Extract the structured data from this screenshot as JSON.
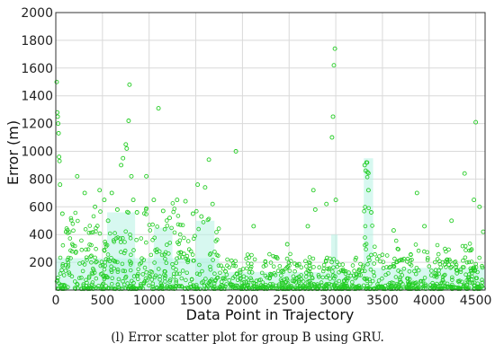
{
  "caption": "(l) Error scatter plot for group B using GRU.",
  "chart_data": {
    "type": "scatter",
    "xlabel": "Data Point in Trajectory",
    "ylabel": "Error (m)",
    "xlim": [
      0,
      4600
    ],
    "ylim": [
      0,
      2000
    ],
    "xticks": [
      0,
      500,
      1000,
      1500,
      2000,
      2500,
      3000,
      3500,
      4000,
      4500
    ],
    "yticks": [
      200,
      400,
      600,
      800,
      1000,
      1200,
      1400,
      1600,
      1800,
      2000
    ],
    "grid": true,
    "marker": "open-circle",
    "colors": {
      "marker": "#22cc22",
      "shade": "#b6f2e4",
      "grid": "#d9d9d9"
    },
    "points": [
      [
        10,
        1500
      ],
      [
        15,
        1280
      ],
      [
        20,
        1250
      ],
      [
        25,
        1200
      ],
      [
        30,
        1130
      ],
      [
        35,
        960
      ],
      [
        40,
        930
      ],
      [
        45,
        760
      ],
      [
        70,
        550
      ],
      [
        110,
        420
      ],
      [
        230,
        820
      ],
      [
        310,
        700
      ],
      [
        420,
        600
      ],
      [
        470,
        720
      ],
      [
        520,
        650
      ],
      [
        560,
        500
      ],
      [
        600,
        700
      ],
      [
        660,
        580
      ],
      [
        700,
        900
      ],
      [
        720,
        950
      ],
      [
        750,
        1050
      ],
      [
        760,
        1020
      ],
      [
        780,
        1220
      ],
      [
        790,
        1480
      ],
      [
        810,
        820
      ],
      [
        830,
        650
      ],
      [
        870,
        560
      ],
      [
        970,
        820
      ],
      [
        1050,
        650
      ],
      [
        1100,
        1310
      ],
      [
        1150,
        570
      ],
      [
        1220,
        520
      ],
      [
        1300,
        650
      ],
      [
        1390,
        640
      ],
      [
        1470,
        550
      ],
      [
        1520,
        760
      ],
      [
        1560,
        530
      ],
      [
        1600,
        740
      ],
      [
        1640,
        940
      ],
      [
        1680,
        620
      ],
      [
        1930,
        1000
      ],
      [
        2120,
        460
      ],
      [
        2480,
        330
      ],
      [
        2700,
        460
      ],
      [
        2760,
        720
      ],
      [
        2780,
        580
      ],
      [
        2900,
        620
      ],
      [
        2960,
        1100
      ],
      [
        2970,
        1250
      ],
      [
        2980,
        1620
      ],
      [
        2990,
        1740
      ],
      [
        3000,
        650
      ],
      [
        3310,
        900
      ],
      [
        3320,
        860
      ],
      [
        3330,
        920
      ],
      [
        3340,
        850
      ],
      [
        3350,
        720
      ],
      [
        3380,
        560
      ],
      [
        3620,
        430
      ],
      [
        3870,
        700
      ],
      [
        3950,
        460
      ],
      [
        4240,
        500
      ],
      [
        4380,
        840
      ],
      [
        4480,
        650
      ],
      [
        4500,
        1210
      ],
      [
        4540,
        600
      ],
      [
        4580,
        420
      ]
    ]
  }
}
